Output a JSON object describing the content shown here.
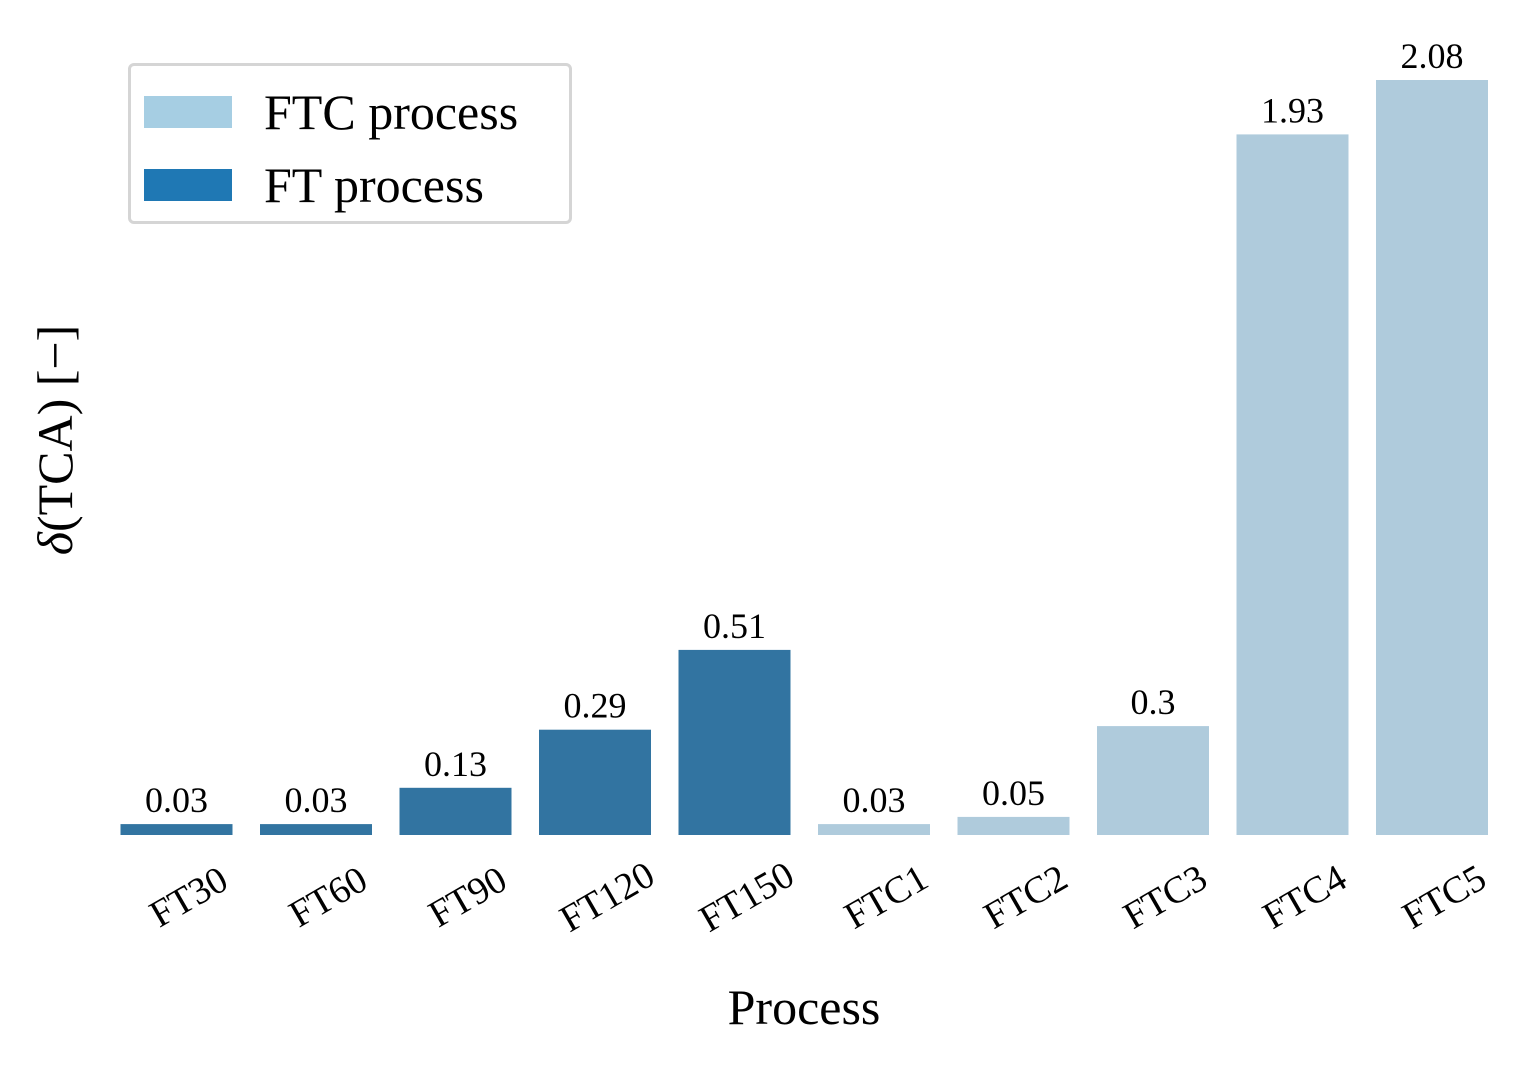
{
  "chart_data": {
    "type": "bar",
    "categories": [
      "FT30",
      "FT60",
      "FT90",
      "FT120",
      "FT150",
      "FTC1",
      "FTC2",
      "FTC3",
      "FTC4",
      "FTC5"
    ],
    "values": [
      0.03,
      0.03,
      0.13,
      0.29,
      0.51,
      0.03,
      0.05,
      0.3,
      1.93,
      2.08
    ],
    "value_labels": [
      "0.03",
      "0.03",
      "0.13",
      "0.29",
      "0.51",
      "0.03",
      "0.05",
      "0.3",
      "1.93",
      "2.08"
    ],
    "groups": [
      "FT process",
      "FT process",
      "FT process",
      "FT process",
      "FT process",
      "FTC process",
      "FTC process",
      "FTC process",
      "FTC process",
      "FTC process"
    ],
    "xlabel": "Process",
    "ylabel_symbol": "δ",
    "ylabel_rest": "(TCA) [−]",
    "ylim": [
      0,
      2.08
    ],
    "grid": false,
    "legend_position": "top-left",
    "legend": [
      {
        "name": "FTC process",
        "swatch_color": "#a6cee3"
      },
      {
        "name": "FT process",
        "swatch_color": "#1f78b4"
      }
    ],
    "bar_colors": {
      "FT process": "#3274a1",
      "FTC process": "#afcbdc"
    }
  }
}
